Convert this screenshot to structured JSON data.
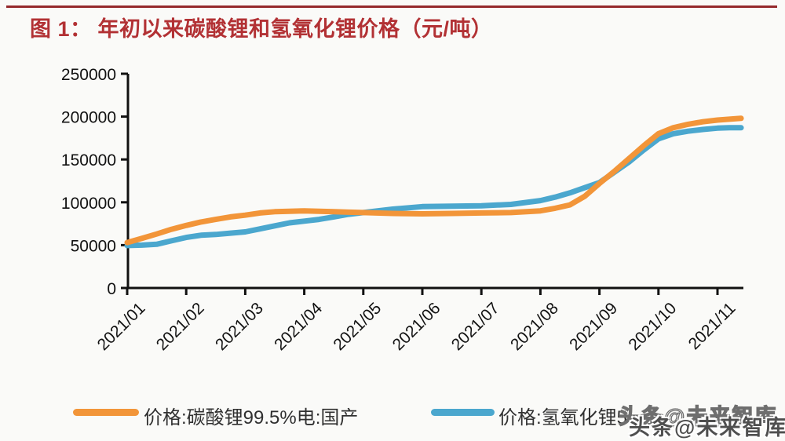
{
  "page": {
    "background": "#FAFAF8",
    "rule_color": "#95292C",
    "title_color": "#B23134"
  },
  "header": {
    "title": "图 1：  年初以来碳酸锂和氢氧化锂价格（元/吨）"
  },
  "watermark": {
    "text": "头条@未来智库"
  },
  "chart_data": {
    "type": "line",
    "title": "图 1：年初以来碳酸锂和氢氧化锂价格（元/吨）",
    "xlabel": "",
    "ylabel": "",
    "ylim": [
      0,
      250000
    ],
    "grid": false,
    "legend_position": "bottom",
    "axis_color": "#111111",
    "x_ticks": [
      "2021/01",
      "2021/02",
      "2021/03",
      "2021/04",
      "2021/05",
      "2021/06",
      "2021/07",
      "2021/08",
      "2021/09",
      "2021/10",
      "2021/11"
    ],
    "y_tickvalues": [
      0,
      50000,
      100000,
      150000,
      200000,
      250000
    ],
    "y_ticklabels": [
      "0",
      "50000",
      "100000",
      "150000",
      "200000",
      "250000"
    ],
    "series": [
      {
        "name": "价格:碳酸锂99.5%电:国产",
        "color": "#F29539",
        "x": [
          1.0,
          1.25,
          1.5,
          1.75,
          2.0,
          2.25,
          2.5,
          2.75,
          3.0,
          3.25,
          3.5,
          3.75,
          4.0,
          4.25,
          4.5,
          4.75,
          5.0,
          5.5,
          6.0,
          6.5,
          7.0,
          7.5,
          8.0,
          8.25,
          8.5,
          8.75,
          9.0,
          9.25,
          9.5,
          9.75,
          10.0,
          10.25,
          10.5,
          10.75,
          11.0,
          11.2,
          11.4
        ],
        "values": [
          53000,
          58000,
          63000,
          68500,
          73000,
          77000,
          80000,
          83000,
          85000,
          87500,
          89000,
          89500,
          90000,
          89500,
          89000,
          88500,
          88000,
          87000,
          86500,
          87000,
          87500,
          88000,
          90000,
          93000,
          97000,
          107000,
          122000,
          136000,
          151000,
          166000,
          180000,
          187000,
          191000,
          194000,
          196000,
          197000,
          198000
        ]
      },
      {
        "name": "价格:氢氧化锂5",
        "color": "#4BA7CE",
        "x": [
          1.0,
          1.25,
          1.5,
          1.75,
          2.0,
          2.25,
          2.5,
          2.75,
          3.0,
          3.25,
          3.5,
          3.75,
          4.0,
          4.25,
          4.5,
          4.75,
          5.0,
          5.5,
          6.0,
          6.5,
          7.0,
          7.5,
          8.0,
          8.25,
          8.5,
          8.75,
          9.0,
          9.25,
          9.5,
          9.75,
          10.0,
          10.25,
          10.5,
          10.75,
          11.0,
          11.2,
          11.4
        ],
        "values": [
          49500,
          50000,
          51000,
          55000,
          59000,
          61500,
          62500,
          64000,
          65500,
          69000,
          72500,
          76000,
          78000,
          80000,
          83000,
          86000,
          88000,
          92000,
          95000,
          95500,
          96000,
          97500,
          102000,
          106000,
          111000,
          117000,
          123000,
          135000,
          147000,
          161000,
          174000,
          180000,
          183000,
          185000,
          186500,
          187000,
          187000
        ]
      }
    ]
  }
}
